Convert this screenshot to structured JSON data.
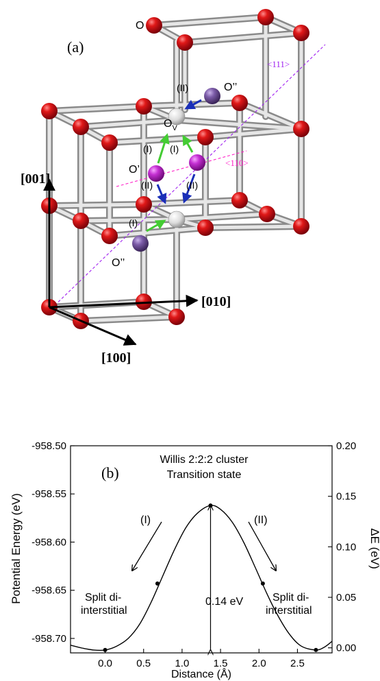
{
  "panel_a": {
    "label": "(a)",
    "atom_o": "O",
    "atom_o_double_top": "O’’",
    "atom_o_double_bottom": "O’’",
    "atom_o_prime": "O’",
    "vacancy": "O",
    "vacancy_sub": "V",
    "dir_111": "<111>",
    "dir_110": "<110>",
    "step_I": "(I)",
    "step_II": "(II)",
    "axis_001": "[001]",
    "axis_010": "[010]",
    "axis_100": "[100]",
    "colors": {
      "oxygen": "#d0021b",
      "vacancy": "#d8d8d8",
      "interstitial_prime": "#b42cbf",
      "interstitial_double": "#7b5aa3",
      "rod": "#c8c8c8",
      "arrow_I": "#44cc33",
      "arrow_II": "#1a2fb8",
      "dir_111": "#a020f0",
      "dir_110": "#ff20c8"
    }
  },
  "chart_data": {
    "type": "line",
    "panel_label": "(b)",
    "title": "Willis 2:2:2 cluster",
    "subtitle": "Transition state",
    "xlabel": "Distance (Å)",
    "ylabel": "Potential Energy (eV)",
    "ylabel_right": "ΔE (eV)",
    "xlim": [
      -0.45,
      2.95
    ],
    "ylim": [
      -958.715,
      -958.5
    ],
    "ylim_right": [
      -0.005,
      0.2
    ],
    "x_ticks": [
      0.0,
      0.5,
      1.0,
      1.5,
      2.0,
      2.5
    ],
    "x_tick_labels": [
      "0.0",
      "0.5",
      "1.0",
      "1.5",
      "2.0",
      "2.5"
    ],
    "y_ticks": [
      -958.7,
      -958.65,
      -958.6,
      -958.55,
      -958.5
    ],
    "y_tick_labels": [
      "-958.70",
      "-958.65",
      "-958.60",
      "-958.55",
      "-958.50"
    ],
    "y2_ticks": [
      0.0,
      0.05,
      0.1,
      0.15,
      0.2
    ],
    "y2_tick_labels": [
      "0.00",
      "0.05",
      "0.10",
      "0.15",
      "0.20"
    ],
    "curve": {
      "x": [
        -0.45,
        -0.3,
        -0.15,
        0.0,
        0.15,
        0.3,
        0.45,
        0.6,
        0.75,
        0.9,
        1.05,
        1.2,
        1.37,
        1.5,
        1.65,
        1.8,
        1.95,
        2.1,
        2.25,
        2.4,
        2.55,
        2.74,
        2.85,
        2.95
      ],
      "y": [
        -958.707,
        -958.71,
        -958.712,
        -958.712,
        -958.708,
        -958.7,
        -958.685,
        -958.662,
        -958.635,
        -958.608,
        -958.585,
        -958.57,
        -958.562,
        -958.566,
        -958.579,
        -958.6,
        -958.626,
        -958.653,
        -958.677,
        -958.696,
        -958.708,
        -958.712,
        -958.709,
        -958.703
      ]
    },
    "markers": {
      "x": [
        0.0,
        0.68,
        1.37,
        2.05,
        2.74
      ],
      "y": [
        -958.712,
        -958.643,
        -958.562,
        -958.643,
        -958.712
      ]
    },
    "barrier": {
      "x": 1.37,
      "y_low": -958.712,
      "y_high": -958.562,
      "label": "0.14 eV"
    },
    "annotations": {
      "left_state": [
        "Split di-",
        "interstitial"
      ],
      "right_state": [
        "Split di-",
        "interstitial"
      ],
      "path_I": "(I)",
      "path_II": "(II)"
    }
  }
}
